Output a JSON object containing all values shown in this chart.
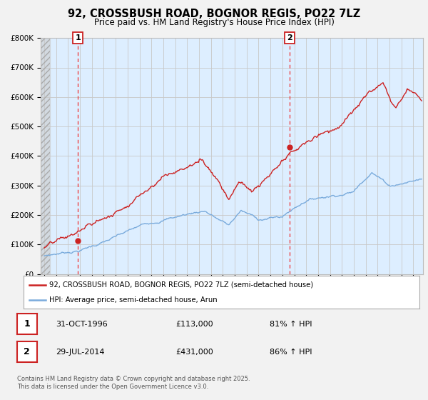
{
  "title": "92, CROSSBUSH ROAD, BOGNOR REGIS, PO22 7LZ",
  "subtitle": "Price paid vs. HM Land Registry's House Price Index (HPI)",
  "xlim": [
    1993.7,
    2025.8
  ],
  "ylim": [
    0,
    800000
  ],
  "yticks": [
    0,
    100000,
    200000,
    300000,
    400000,
    500000,
    600000,
    700000,
    800000
  ],
  "ytick_labels": [
    "£0",
    "£100K",
    "£200K",
    "£300K",
    "£400K",
    "£500K",
    "£600K",
    "£700K",
    "£800K"
  ],
  "hpi_color": "#7aabdc",
  "price_color": "#cc2222",
  "marker1_x": 1996.83,
  "marker1_y": 113000,
  "marker2_x": 2014.58,
  "marker2_y": 431000,
  "vline_color": "#ee3333",
  "legend_label_price": "92, CROSSBUSH ROAD, BOGNOR REGIS, PO22 7LZ (semi-detached house)",
  "legend_label_hpi": "HPI: Average price, semi-detached house, Arun",
  "annotation1_label": "1",
  "annotation2_label": "2",
  "footer_text": "Contains HM Land Registry data © Crown copyright and database right 2025.\nThis data is licensed under the Open Government Licence v3.0.",
  "background_color": "#f2f2f2",
  "plot_bg_color": "#ddeeff",
  "hatch_color": "#bbbbbb"
}
